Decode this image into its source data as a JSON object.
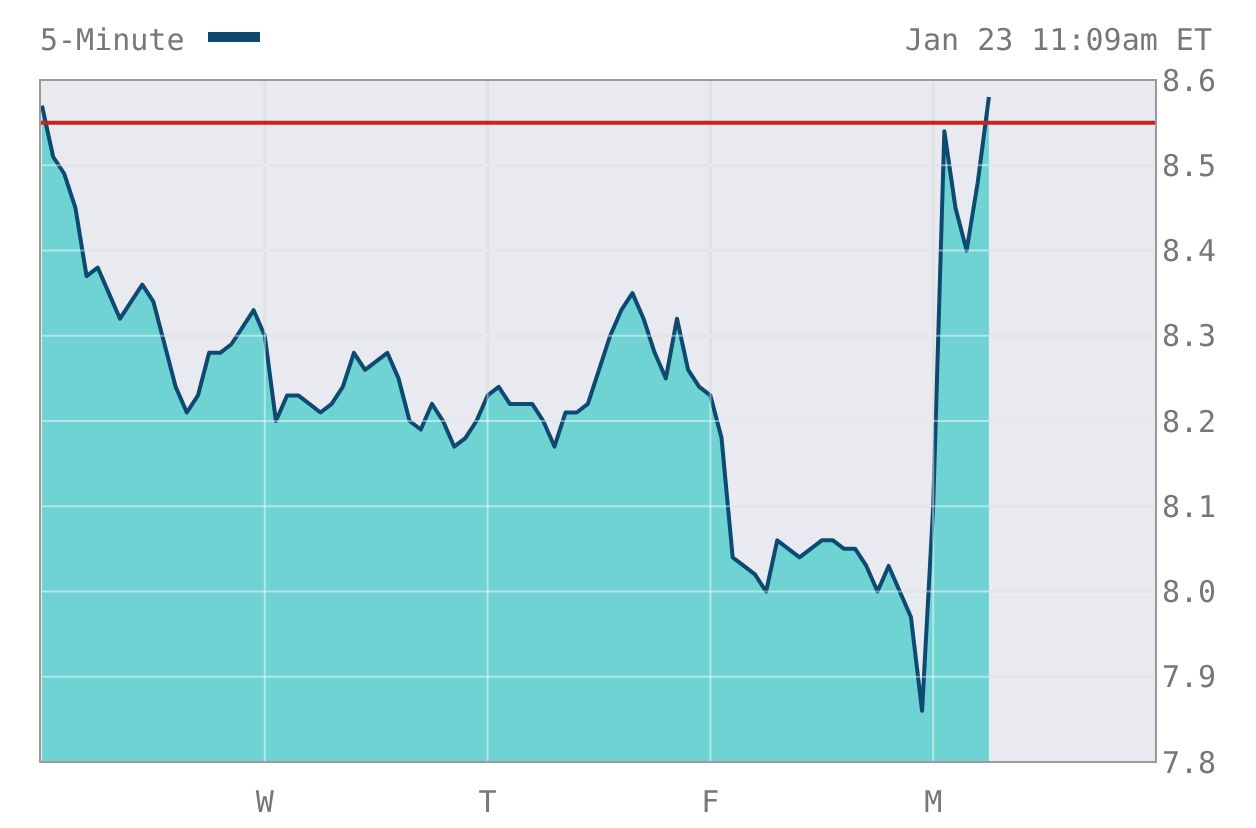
{
  "chart_data": {
    "type": "area",
    "subtitle": "Jan 23 11:09am ET",
    "categories": [
      null,
      null,
      null,
      null,
      null,
      null,
      null,
      null,
      null,
      null,
      null,
      null,
      null,
      null,
      null,
      null,
      null,
      null,
      null,
      null,
      "W",
      null,
      null,
      null,
      null,
      null,
      null,
      null,
      null,
      null,
      null,
      null,
      null,
      null,
      null,
      null,
      null,
      null,
      null,
      null,
      "T",
      null,
      null,
      null,
      null,
      null,
      null,
      null,
      null,
      null,
      null,
      null,
      null,
      null,
      null,
      null,
      null,
      null,
      null,
      null,
      "F",
      null,
      null,
      null,
      null,
      null,
      null,
      null,
      null,
      null,
      null,
      null,
      null,
      null,
      null,
      null,
      null,
      null,
      null,
      null,
      "M",
      null,
      null,
      null,
      null,
      null,
      null,
      null,
      null,
      null,
      null,
      null,
      null,
      null,
      null,
      null,
      null,
      null,
      null,
      null,
      null
    ],
    "series": [
      {
        "name": "5-Minute",
        "color": "#0d4a72",
        "values": [
          8.57,
          8.51,
          8.49,
          8.45,
          8.37,
          8.38,
          8.35,
          8.32,
          8.34,
          8.36,
          8.34,
          8.29,
          8.24,
          8.21,
          8.23,
          8.28,
          8.28,
          8.29,
          8.31,
          8.33,
          8.3,
          8.2,
          8.23,
          8.23,
          8.22,
          8.21,
          8.22,
          8.24,
          8.28,
          8.26,
          8.27,
          8.28,
          8.25,
          8.2,
          8.19,
          8.22,
          8.2,
          8.17,
          8.18,
          8.2,
          8.23,
          8.24,
          8.22,
          8.22,
          8.22,
          8.2,
          8.17,
          8.21,
          8.21,
          8.22,
          8.26,
          8.3,
          8.33,
          8.35,
          8.32,
          8.28,
          8.25,
          8.32,
          8.26,
          8.24,
          8.23,
          8.18,
          8.04,
          8.03,
          8.02,
          8,
          8.06,
          8.05,
          8.04,
          8.05,
          8.06,
          8.06,
          8.05,
          8.05,
          8.03,
          8,
          8.03,
          8,
          7.97,
          7.86,
          8.1,
          8.54,
          8.45,
          8.4,
          8.48,
          8.58,
          null,
          null,
          null,
          null,
          null,
          null,
          null,
          null,
          null,
          null,
          null,
          null,
          null,
          null,
          null
        ]
      }
    ],
    "ylim": [
      7.8,
      8.6
    ],
    "yticks": [
      7.8,
      7.9,
      {
        "value": 8,
        "label": "8.0"
      },
      8.1,
      8.2,
      8.3,
      8.4,
      8.5,
      8.6
    ],
    "grid": true,
    "legend": "top left",
    "ref_lines": [
      {
        "axis": "y",
        "value": 8.55,
        "color": "#cc2222"
      }
    ]
  }
}
